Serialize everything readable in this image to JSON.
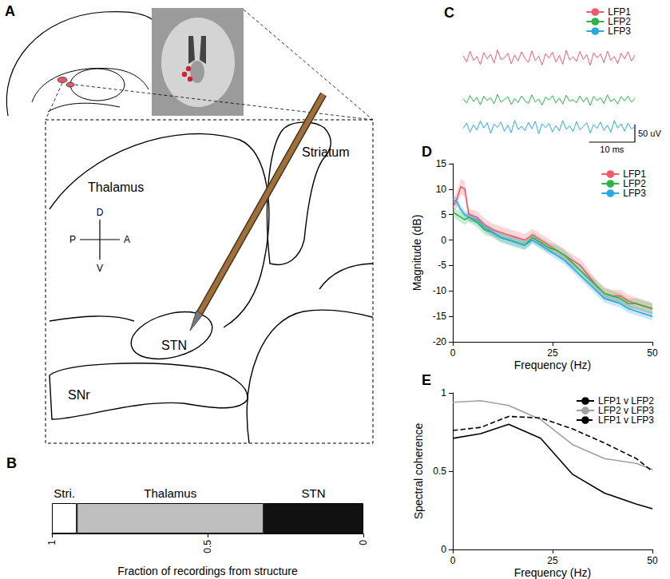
{
  "chart_data": [
    {
      "panel": "B",
      "type": "bar",
      "orientation": "horizontal",
      "stacked": true,
      "xlabel": "Fraction of recordings from structure",
      "xlim": [
        1,
        0
      ],
      "xticks": [
        1,
        0.5,
        0
      ],
      "series": [
        {
          "name": "STN",
          "color": "#111111",
          "values": [
            0.32
          ]
        },
        {
          "name": "Thalamus",
          "color": "#bfbfbf",
          "values": [
            0.6
          ]
        },
        {
          "name": "Stri.",
          "color": "#ffffff",
          "values": [
            0.08
          ]
        }
      ]
    },
    {
      "panel": "C",
      "type": "line",
      "tick_labels": false,
      "legend": "top-right",
      "x": [
        0,
        0.75,
        1.5,
        2.25,
        3,
        3.75,
        4.5,
        5.25,
        6,
        6.75,
        7.5,
        8.25,
        9,
        9.75,
        10.5,
        11.25,
        12,
        12.75,
        13.5,
        14.25,
        15,
        15.75,
        16.5,
        17.25,
        18,
        18.75,
        19.5,
        20.25,
        21,
        21.75,
        22.5,
        23.25,
        24,
        24.75,
        25.5,
        26.25,
        27,
        27.75,
        28.5,
        29.25,
        30,
        30.75,
        31.5,
        32.25,
        33,
        33.75,
        34.5,
        35.25,
        36,
        36.75,
        37.5
      ],
      "xlim": [
        0,
        37.5
      ],
      "ylim": [
        -36,
        36
      ],
      "scale_bar": {
        "x": 10,
        "y": 50,
        "x_label": "10 ms",
        "y_label": "50 uV"
      },
      "series": [
        {
          "name": "LFP1",
          "color": "#f05a6a",
          "values": [
            5,
            -12,
            18,
            -8,
            3,
            -20,
            14,
            -4,
            9,
            -16,
            21,
            -6,
            -1,
            12,
            -18,
            7,
            -10,
            16,
            -3,
            -14,
            19,
            -9,
            4,
            -21,
            11,
            -2,
            15,
            -13,
            6,
            -19,
            20,
            -7,
            2,
            -11,
            17,
            -5,
            8,
            -22,
            13,
            -1,
            10,
            -15,
            18,
            -8,
            3,
            -17,
            12,
            -4,
            16,
            -10,
            6
          ]
        },
        {
          "name": "LFP2",
          "color": "#2db34a",
          "values": [
            3,
            -9,
            12,
            -5,
            7,
            -14,
            10,
            -2,
            6,
            -11,
            15,
            -7,
            1,
            9,
            -13,
            4,
            -8,
            11,
            -3,
            -10,
            14,
            -6,
            2,
            -15,
            8,
            -1,
            12,
            -9,
            5,
            -12,
            13,
            -4,
            0,
            -8,
            11,
            -6,
            7,
            -16,
            10,
            -2,
            6,
            -11,
            14,
            -5,
            3,
            -12,
            9,
            -3,
            11,
            -7,
            4
          ]
        },
        {
          "name": "LFP3",
          "color": "#29a9e1",
          "values": [
            -4,
            11,
            -15,
            6,
            -9,
            17,
            -3,
            12,
            -18,
            8,
            -1,
            14,
            -12,
            5,
            -16,
            19,
            -7,
            2,
            -10,
            13,
            -5,
            16,
            -19,
            9,
            -2,
            10,
            -14,
            4,
            -11,
            18,
            -6,
            3,
            -13,
            15,
            -8,
            1,
            12,
            -17,
            7,
            -4,
            14,
            -10,
            5,
            -15,
            18,
            -3,
            9,
            -12,
            11,
            -6,
            2
          ]
        }
      ]
    },
    {
      "panel": "D",
      "type": "line",
      "grid": false,
      "legend": "top-right",
      "xlabel": "Frequency (Hz)",
      "ylabel": "Magnitude (dB)",
      "x": [
        0,
        1,
        2,
        3,
        4,
        6,
        8,
        10,
        12,
        14,
        16,
        18,
        20,
        22,
        24,
        26,
        28,
        30,
        32,
        34,
        36,
        38,
        40,
        42,
        44,
        46,
        48,
        50
      ],
      "xlim": [
        0,
        50
      ],
      "xticks": [
        0,
        25,
        50
      ],
      "ylim": [
        -20,
        15
      ],
      "yticks": [
        -20,
        -15,
        -10,
        -5,
        0,
        5,
        10,
        15
      ],
      "series": [
        {
          "name": "LFP1",
          "color": "#f05a6a",
          "values": [
            6.5,
            8,
            10.5,
            10,
            5,
            4.5,
            3,
            2,
            1.5,
            1,
            0.5,
            0,
            1,
            0,
            -1,
            -2,
            -3,
            -4,
            -5,
            -7,
            -9,
            -10.5,
            -11,
            -11,
            -12,
            -12.5,
            -13,
            -13.5
          ],
          "errors": [
            1.5,
            1.5,
            1.5,
            1.5,
            1.2,
            1.2,
            1.2,
            1.2,
            1.2,
            1.2,
            1.2,
            1.2,
            1.2,
            1.2,
            1.2,
            1.2,
            1.2,
            1.2,
            1.2,
            1.2,
            1.2,
            1.2,
            1.2,
            1.2,
            1.2,
            1.2,
            1.2,
            1.2
          ]
        },
        {
          "name": "LFP2",
          "color": "#2db34a",
          "values": [
            5.5,
            5,
            4.5,
            4,
            4.5,
            3.5,
            2,
            1.5,
            0.5,
            0,
            -0.5,
            -1,
            0.5,
            -0.5,
            -1.5,
            -2,
            -3,
            -4.5,
            -6,
            -7.5,
            -9,
            -10.5,
            -11,
            -11.5,
            -12.5,
            -12.5,
            -13,
            -13.5
          ],
          "errors": [
            1,
            1,
            1,
            1,
            1,
            1,
            1,
            1,
            1,
            1,
            1,
            1,
            1,
            1,
            1,
            1,
            1,
            1,
            1,
            1,
            1,
            1,
            1,
            1,
            1,
            1,
            1,
            1
          ]
        },
        {
          "name": "LFP3",
          "color": "#29a9e1",
          "values": [
            8,
            7.5,
            6,
            5,
            4.5,
            4,
            2.5,
            1.5,
            0.5,
            0,
            -0.5,
            -1,
            0,
            -1,
            -2,
            -3,
            -4,
            -5.5,
            -7,
            -8.5,
            -10,
            -11.5,
            -12,
            -12.5,
            -13.5,
            -14,
            -14.5,
            -15
          ],
          "errors": [
            0.8,
            0.8,
            0.8,
            0.8,
            0.8,
            0.8,
            0.8,
            0.8,
            0.8,
            0.8,
            0.8,
            0.8,
            0.8,
            0.8,
            0.8,
            0.8,
            0.8,
            0.8,
            0.8,
            0.8,
            0.8,
            0.8,
            0.8,
            0.8,
            0.8,
            0.8,
            0.8,
            0.8
          ]
        }
      ]
    },
    {
      "panel": "E",
      "type": "line",
      "grid": false,
      "legend": "top-right",
      "xlabel": "Frequency (Hz)",
      "ylabel": "Spectral coherence",
      "x": [
        0,
        7,
        14,
        22,
        30,
        38,
        46,
        50
      ],
      "xlim": [
        0,
        50
      ],
      "xticks": [
        0,
        25,
        50
      ],
      "ylim": [
        0,
        1
      ],
      "yticks": [
        0,
        0.5,
        1
      ],
      "series": [
        {
          "name": "LFP1 v LFP2",
          "color": "#000000",
          "line_style": "solid",
          "values": [
            0.71,
            0.74,
            0.8,
            0.71,
            0.48,
            0.36,
            0.29,
            0.26
          ]
        },
        {
          "name": "LFP2 v LFP3",
          "color": "#a0a0a0",
          "line_style": "solid",
          "values": [
            0.94,
            0.95,
            0.92,
            0.83,
            0.67,
            0.58,
            0.55,
            0.51
          ]
        },
        {
          "name": "LFP1 v LFP3",
          "color": "#000000",
          "line_style": "dashed",
          "values": [
            0.76,
            0.78,
            0.85,
            0.84,
            0.77,
            0.68,
            0.58,
            0.5
          ]
        }
      ]
    }
  ],
  "diagram": {
    "panel": "A",
    "regions": {
      "thalamus": "Thalamus",
      "striatum": "Striatum",
      "stn": "STN",
      "snr": "SNr"
    },
    "compass": {
      "up": "D",
      "down": "V",
      "left": "P",
      "right": "A"
    }
  }
}
